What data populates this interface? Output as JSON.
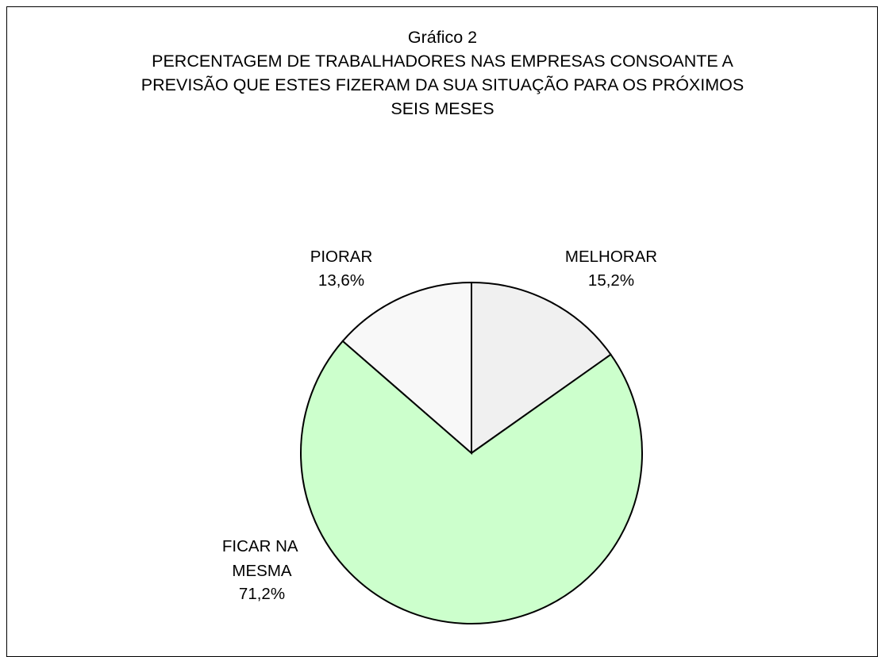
{
  "chart_data": {
    "type": "pie",
    "title": "Gráfico 2",
    "subtitle": "PERCENTAGEM DE TRABALHADORES NAS EMPRESAS CONSOANTE A PREVISÃO QUE ESTES FIZERAM DA SUA SITUAÇÃO PARA OS PRÓXIMOS SEIS MESES",
    "categories": [
      "MELHORAR",
      "FICAR NA MESMA",
      "PIORAR"
    ],
    "values": [
      15.2,
      71.2,
      13.6
    ],
    "value_labels": [
      "15,2%",
      "71,2%",
      "13,6%"
    ],
    "colors": [
      "#f0f0f0",
      "#ccffcc",
      "#f8f8f8"
    ]
  }
}
